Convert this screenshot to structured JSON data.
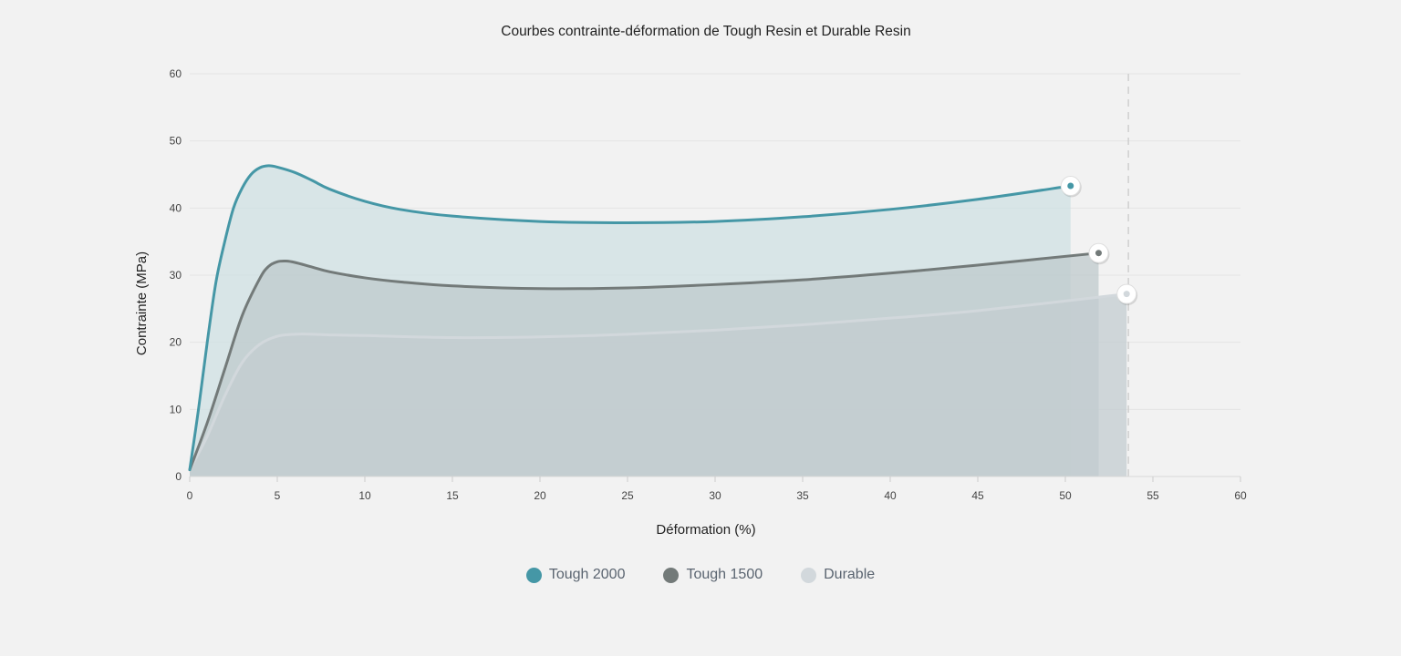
{
  "chart_data": {
    "type": "area",
    "title": "Courbes contrainte-déformation de Tough Resin et Durable Resin",
    "xlabel": "Déformation (%)",
    "ylabel": "Contrainte (MPa)",
    "xlim": [
      0,
      60
    ],
    "ylim": [
      0,
      60
    ],
    "x_ticks": [
      0,
      5,
      10,
      15,
      20,
      25,
      30,
      35,
      40,
      45,
      50,
      55,
      60
    ],
    "y_ticks": [
      0,
      10,
      20,
      30,
      40,
      50,
      60
    ],
    "grid": "horizontal",
    "legend_position": "bottom",
    "reference_line_x": 53.6,
    "series": [
      {
        "name": "Tough 2000",
        "color": "#4597a6",
        "fill": "#cfe0e3",
        "points": [
          [
            0,
            1
          ],
          [
            0.5,
            10
          ],
          [
            1,
            20
          ],
          [
            1.5,
            29
          ],
          [
            2,
            35
          ],
          [
            2.5,
            40
          ],
          [
            3,
            43
          ],
          [
            3.5,
            45
          ],
          [
            4,
            46
          ],
          [
            4.5,
            46.3
          ],
          [
            5,
            46.1
          ],
          [
            6,
            45.3
          ],
          [
            7,
            44.1
          ],
          [
            8,
            42.8
          ],
          [
            10,
            41
          ],
          [
            12,
            39.8
          ],
          [
            15,
            38.8
          ],
          [
            20,
            38
          ],
          [
            25,
            37.8
          ],
          [
            30,
            38
          ],
          [
            35,
            38.7
          ],
          [
            40,
            39.8
          ],
          [
            45,
            41.3
          ],
          [
            50.3,
            43.3
          ]
        ],
        "end": [
          50.3,
          43.3
        ]
      },
      {
        "name": "Tough 1500",
        "color": "#737a79",
        "fill": "#bfc9cc",
        "points": [
          [
            0,
            1
          ],
          [
            1,
            8
          ],
          [
            2,
            16
          ],
          [
            3,
            24
          ],
          [
            4,
            29.5
          ],
          [
            4.5,
            31.3
          ],
          [
            5,
            32
          ],
          [
            5.5,
            32.1
          ],
          [
            6,
            31.9
          ],
          [
            7,
            31.2
          ],
          [
            8,
            30.5
          ],
          [
            10,
            29.6
          ],
          [
            12,
            29
          ],
          [
            15,
            28.4
          ],
          [
            20,
            28
          ],
          [
            25,
            28.1
          ],
          [
            30,
            28.6
          ],
          [
            35,
            29.3
          ],
          [
            40,
            30.3
          ],
          [
            45,
            31.5
          ],
          [
            51.9,
            33.3
          ]
        ],
        "end": [
          51.9,
          33.3
        ]
      },
      {
        "name": "Durable",
        "color": "#d2d8dc",
        "fill": "#c3ccd0",
        "points": [
          [
            0,
            1
          ],
          [
            1,
            6
          ],
          [
            2,
            12
          ],
          [
            3,
            17
          ],
          [
            4,
            19.7
          ],
          [
            5,
            20.9
          ],
          [
            6,
            21.2
          ],
          [
            7,
            21.2
          ],
          [
            8,
            21.1
          ],
          [
            10,
            21
          ],
          [
            15,
            20.7
          ],
          [
            20,
            20.8
          ],
          [
            25,
            21.2
          ],
          [
            30,
            21.8
          ],
          [
            35,
            22.6
          ],
          [
            40,
            23.6
          ],
          [
            45,
            24.7
          ],
          [
            53.5,
            27.2
          ]
        ],
        "end": [
          53.5,
          27.2
        ]
      }
    ]
  }
}
